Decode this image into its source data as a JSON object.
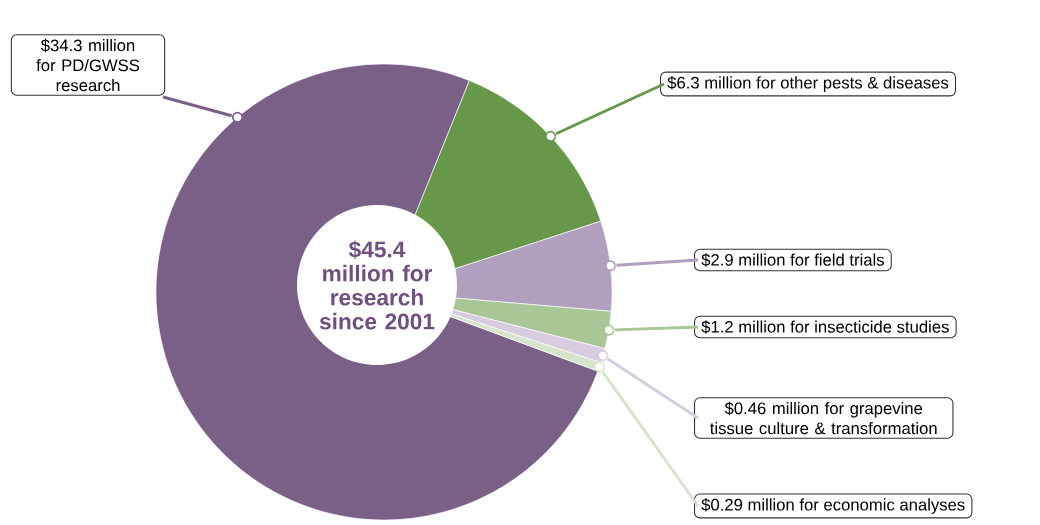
{
  "chart_data": {
    "type": "pie",
    "title": "$45.4 million for research since 2001",
    "categories": [
      "for PD/GWSS research",
      "for other pests & diseases",
      "for field trials",
      "for insecticide studies",
      "for grapevine tissue culture & transformation",
      "for economic analyses"
    ],
    "values": [
      34.3,
      6.3,
      2.9,
      1.2,
      0.46,
      0.29
    ],
    "value_labels": [
      "$34.3 million",
      "$6.3 million",
      "$2.9 million",
      "$1.2 million",
      "$0.46 million",
      "$0.29 million"
    ],
    "colors": [
      "#7a5f87",
      "#67984a",
      "#b09fbf",
      "#a9c796",
      "#d7cce0",
      "#d6e4cc"
    ]
  }
}
